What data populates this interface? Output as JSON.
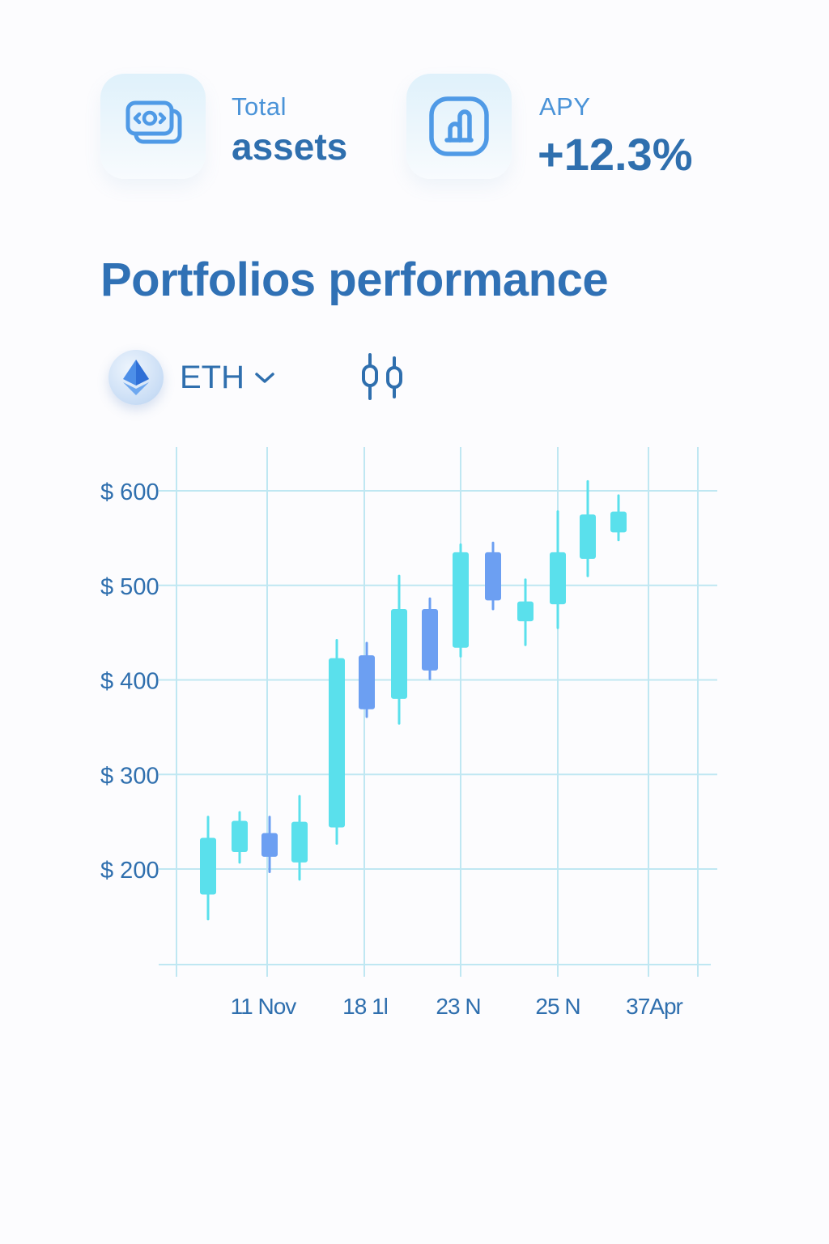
{
  "stats": {
    "total_assets": {
      "label": "Total",
      "value": "assets",
      "icon": "money-transfer-icon"
    },
    "apy": {
      "label": "APY",
      "value": "+12.3%",
      "icon": "growth-chart-icon"
    }
  },
  "portfolio": {
    "title": "Portfolios performance",
    "asset": {
      "name": "ETH",
      "icon": "ethereum-icon",
      "dropdown_icon": "chevron-down-icon"
    },
    "chart_toggle_icon": "candlestick-icon"
  },
  "colors": {
    "accent": "#3071b5",
    "bull": "#5ae0ec",
    "bear": "#6c9ff2",
    "grid": "#bfe7f2",
    "axis_text": "#2f6fae"
  },
  "chart_data": {
    "type": "candlestick",
    "title": "",
    "xlabel": "",
    "ylabel": "",
    "ylim": [
      100,
      650
    ],
    "y_ticks": [
      200,
      300,
      400,
      500,
      600
    ],
    "y_tick_labels": [
      "$ 200",
      "$ 300",
      "$ 400",
      "$ 500",
      "$ 600"
    ],
    "x_tick_labels": [
      "11 Nov",
      "18 1l",
      "23 N",
      "25 N",
      "37Apr"
    ],
    "grid": true,
    "candles": [
      {
        "o": 173,
        "h": 255,
        "l": 147,
        "c": 233,
        "dir": "up"
      },
      {
        "o": 218,
        "h": 260,
        "l": 207,
        "c": 251,
        "dir": "up"
      },
      {
        "o": 238,
        "h": 255,
        "l": 197,
        "c": 213,
        "dir": "down"
      },
      {
        "o": 207,
        "h": 277,
        "l": 189,
        "c": 250,
        "dir": "up"
      },
      {
        "o": 244,
        "h": 442,
        "l": 227,
        "c": 423,
        "dir": "up"
      },
      {
        "o": 426,
        "h": 439,
        "l": 361,
        "c": 369,
        "dir": "down"
      },
      {
        "o": 380,
        "h": 510,
        "l": 354,
        "c": 475,
        "dir": "up"
      },
      {
        "o": 475,
        "h": 486,
        "l": 401,
        "c": 410,
        "dir": "down"
      },
      {
        "o": 434,
        "h": 543,
        "l": 425,
        "c": 535,
        "dir": "up"
      },
      {
        "o": 535,
        "h": 545,
        "l": 475,
        "c": 484,
        "dir": "down"
      },
      {
        "o": 462,
        "h": 506,
        "l": 437,
        "c": 483,
        "dir": "up"
      },
      {
        "o": 480,
        "h": 578,
        "l": 455,
        "c": 535,
        "dir": "up"
      },
      {
        "o": 528,
        "h": 610,
        "l": 510,
        "c": 575,
        "dir": "up"
      },
      {
        "o": 556,
        "h": 595,
        "l": 548,
        "c": 578,
        "dir": "up"
      }
    ]
  }
}
